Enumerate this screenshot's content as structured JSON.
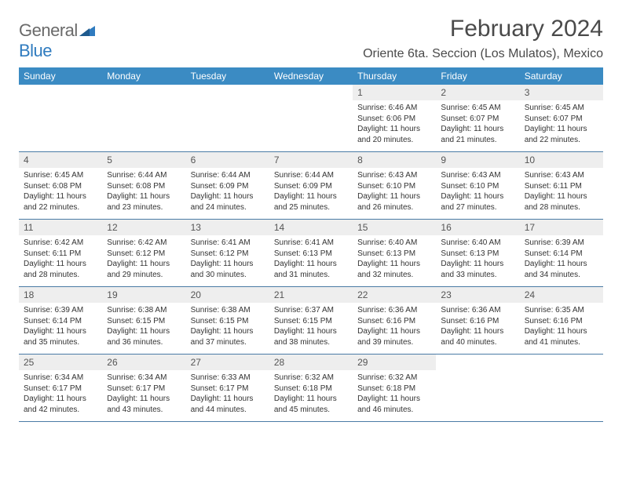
{
  "logo": {
    "text_general": "General",
    "text_blue": "Blue",
    "color_general": "#6a6a6a",
    "color_blue": "#2f7bbf",
    "triangle_color": "#2f7bbf"
  },
  "header": {
    "month_title": "February 2024",
    "location": "Oriente 6ta. Seccion (Los Mulatos), Mexico"
  },
  "style": {
    "header_bg": "#3b8bc3",
    "header_fg": "#ffffff",
    "daynum_bg": "#eeeeee",
    "rule_color": "#4a7ba5",
    "body_font_size": 10,
    "header_font_size": 12,
    "title_font_size": 30,
    "location_font_size": 16
  },
  "weekday_labels": [
    "Sunday",
    "Monday",
    "Tuesday",
    "Wednesday",
    "Thursday",
    "Friday",
    "Saturday"
  ],
  "weeks": [
    [
      {
        "day": "",
        "lines": []
      },
      {
        "day": "",
        "lines": []
      },
      {
        "day": "",
        "lines": []
      },
      {
        "day": "",
        "lines": []
      },
      {
        "day": "1",
        "lines": [
          "Sunrise: 6:46 AM",
          "Sunset: 6:06 PM",
          "Daylight: 11 hours and 20 minutes."
        ]
      },
      {
        "day": "2",
        "lines": [
          "Sunrise: 6:45 AM",
          "Sunset: 6:07 PM",
          "Daylight: 11 hours and 21 minutes."
        ]
      },
      {
        "day": "3",
        "lines": [
          "Sunrise: 6:45 AM",
          "Sunset: 6:07 PM",
          "Daylight: 11 hours and 22 minutes."
        ]
      }
    ],
    [
      {
        "day": "4",
        "lines": [
          "Sunrise: 6:45 AM",
          "Sunset: 6:08 PM",
          "Daylight: 11 hours and 22 minutes."
        ]
      },
      {
        "day": "5",
        "lines": [
          "Sunrise: 6:44 AM",
          "Sunset: 6:08 PM",
          "Daylight: 11 hours and 23 minutes."
        ]
      },
      {
        "day": "6",
        "lines": [
          "Sunrise: 6:44 AM",
          "Sunset: 6:09 PM",
          "Daylight: 11 hours and 24 minutes."
        ]
      },
      {
        "day": "7",
        "lines": [
          "Sunrise: 6:44 AM",
          "Sunset: 6:09 PM",
          "Daylight: 11 hours and 25 minutes."
        ]
      },
      {
        "day": "8",
        "lines": [
          "Sunrise: 6:43 AM",
          "Sunset: 6:10 PM",
          "Daylight: 11 hours and 26 minutes."
        ]
      },
      {
        "day": "9",
        "lines": [
          "Sunrise: 6:43 AM",
          "Sunset: 6:10 PM",
          "Daylight: 11 hours and 27 minutes."
        ]
      },
      {
        "day": "10",
        "lines": [
          "Sunrise: 6:43 AM",
          "Sunset: 6:11 PM",
          "Daylight: 11 hours and 28 minutes."
        ]
      }
    ],
    [
      {
        "day": "11",
        "lines": [
          "Sunrise: 6:42 AM",
          "Sunset: 6:11 PM",
          "Daylight: 11 hours and 28 minutes."
        ]
      },
      {
        "day": "12",
        "lines": [
          "Sunrise: 6:42 AM",
          "Sunset: 6:12 PM",
          "Daylight: 11 hours and 29 minutes."
        ]
      },
      {
        "day": "13",
        "lines": [
          "Sunrise: 6:41 AM",
          "Sunset: 6:12 PM",
          "Daylight: 11 hours and 30 minutes."
        ]
      },
      {
        "day": "14",
        "lines": [
          "Sunrise: 6:41 AM",
          "Sunset: 6:13 PM",
          "Daylight: 11 hours and 31 minutes."
        ]
      },
      {
        "day": "15",
        "lines": [
          "Sunrise: 6:40 AM",
          "Sunset: 6:13 PM",
          "Daylight: 11 hours and 32 minutes."
        ]
      },
      {
        "day": "16",
        "lines": [
          "Sunrise: 6:40 AM",
          "Sunset: 6:13 PM",
          "Daylight: 11 hours and 33 minutes."
        ]
      },
      {
        "day": "17",
        "lines": [
          "Sunrise: 6:39 AM",
          "Sunset: 6:14 PM",
          "Daylight: 11 hours and 34 minutes."
        ]
      }
    ],
    [
      {
        "day": "18",
        "lines": [
          "Sunrise: 6:39 AM",
          "Sunset: 6:14 PM",
          "Daylight: 11 hours and 35 minutes."
        ]
      },
      {
        "day": "19",
        "lines": [
          "Sunrise: 6:38 AM",
          "Sunset: 6:15 PM",
          "Daylight: 11 hours and 36 minutes."
        ]
      },
      {
        "day": "20",
        "lines": [
          "Sunrise: 6:38 AM",
          "Sunset: 6:15 PM",
          "Daylight: 11 hours and 37 minutes."
        ]
      },
      {
        "day": "21",
        "lines": [
          "Sunrise: 6:37 AM",
          "Sunset: 6:15 PM",
          "Daylight: 11 hours and 38 minutes."
        ]
      },
      {
        "day": "22",
        "lines": [
          "Sunrise: 6:36 AM",
          "Sunset: 6:16 PM",
          "Daylight: 11 hours and 39 minutes."
        ]
      },
      {
        "day": "23",
        "lines": [
          "Sunrise: 6:36 AM",
          "Sunset: 6:16 PM",
          "Daylight: 11 hours and 40 minutes."
        ]
      },
      {
        "day": "24",
        "lines": [
          "Sunrise: 6:35 AM",
          "Sunset: 6:16 PM",
          "Daylight: 11 hours and 41 minutes."
        ]
      }
    ],
    [
      {
        "day": "25",
        "lines": [
          "Sunrise: 6:34 AM",
          "Sunset: 6:17 PM",
          "Daylight: 11 hours and 42 minutes."
        ]
      },
      {
        "day": "26",
        "lines": [
          "Sunrise: 6:34 AM",
          "Sunset: 6:17 PM",
          "Daylight: 11 hours and 43 minutes."
        ]
      },
      {
        "day": "27",
        "lines": [
          "Sunrise: 6:33 AM",
          "Sunset: 6:17 PM",
          "Daylight: 11 hours and 44 minutes."
        ]
      },
      {
        "day": "28",
        "lines": [
          "Sunrise: 6:32 AM",
          "Sunset: 6:18 PM",
          "Daylight: 11 hours and 45 minutes."
        ]
      },
      {
        "day": "29",
        "lines": [
          "Sunrise: 6:32 AM",
          "Sunset: 6:18 PM",
          "Daylight: 11 hours and 46 minutes."
        ]
      },
      {
        "day": "",
        "lines": []
      },
      {
        "day": "",
        "lines": []
      }
    ]
  ]
}
